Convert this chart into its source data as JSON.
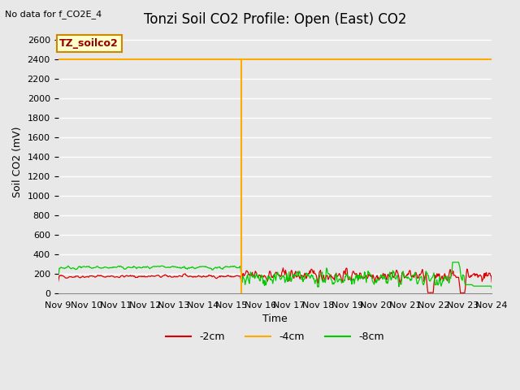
{
  "title": "Tonzi Soil CO2 Profile: Open (East) CO2",
  "top_left_text": "No data for f_CO2E_4",
  "ylabel": "Soil CO2 (mV)",
  "xlabel": "Time",
  "ylim": [
    0,
    2700
  ],
  "yticks": [
    0,
    200,
    400,
    600,
    800,
    1000,
    1200,
    1400,
    1600,
    1800,
    2000,
    2200,
    2400,
    2600
  ],
  "x_start_day": 9,
  "x_end_day": 24,
  "x_tick_days": [
    9,
    10,
    11,
    12,
    13,
    14,
    15,
    16,
    17,
    18,
    19,
    20,
    21,
    22,
    23,
    24
  ],
  "x_tick_labels": [
    "Nov 9",
    "Nov 10",
    "Nov 11",
    "Nov 12",
    "Nov 13",
    "Nov 14",
    "Nov 15",
    "Nov 16",
    "Nov 17",
    "Nov 18",
    "Nov 19",
    "Nov 20",
    "Nov 21",
    "Nov 22",
    "Nov 23",
    "Nov 24"
  ],
  "orange_flat_y": 2400,
  "orange_vertical_x": 15.35,
  "legend_label_red": "-2cm",
  "legend_label_orange": "-4cm",
  "legend_label_green": "-8cm",
  "legend_color_red": "#dd0000",
  "legend_color_orange": "#ffaa00",
  "legend_color_green": "#00cc00",
  "box_label": "TZ_soilco2",
  "box_color": "#ffffcc",
  "box_edge_color": "#cc8800",
  "background_color": "#e8e8e8",
  "plot_background": "#e8e8e8",
  "grid_color": "#ffffff",
  "title_fontsize": 12,
  "axis_fontsize": 9,
  "tick_fontsize": 8
}
